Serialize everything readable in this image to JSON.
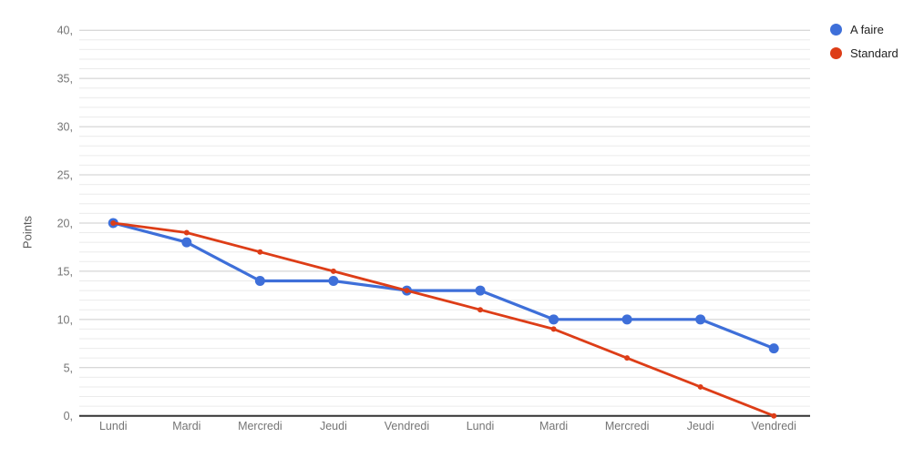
{
  "chart_data": {
    "type": "line",
    "title": "",
    "xlabel": "",
    "ylabel": "Points",
    "categories": [
      "Lundi",
      "Mardi",
      "Mercredi",
      "Jeudi",
      "Vendredi",
      "Lundi",
      "Mardi",
      "Mercredi",
      "Jeudi",
      "Vendredi"
    ],
    "series": [
      {
        "name": "A faire",
        "color": "#3e6fd9",
        "values": [
          20,
          18,
          14,
          14,
          13,
          13,
          10,
          10,
          10,
          7
        ],
        "line_width": 3.2,
        "point_radius": 5.5
      },
      {
        "name": "Standard",
        "color": "#dd3d17",
        "values": [
          20,
          19,
          17,
          15,
          13,
          11,
          9,
          6,
          3,
          0
        ],
        "line_width": 2.8,
        "point_radius": 3
      }
    ],
    "ylim": [
      0,
      40
    ],
    "y_tick_step": 5,
    "y_minor_step": 1,
    "y_tick_labels": [
      "0,",
      "5,",
      "10,",
      "15,",
      "20,",
      "25,",
      "30,",
      "35,",
      "40,"
    ],
    "legend_position": "right",
    "grid": {
      "major_color": "#cccccc",
      "minor_color": "#ebebeb",
      "baseline_color": "#333333",
      "tick_label_color": "#757575"
    }
  }
}
